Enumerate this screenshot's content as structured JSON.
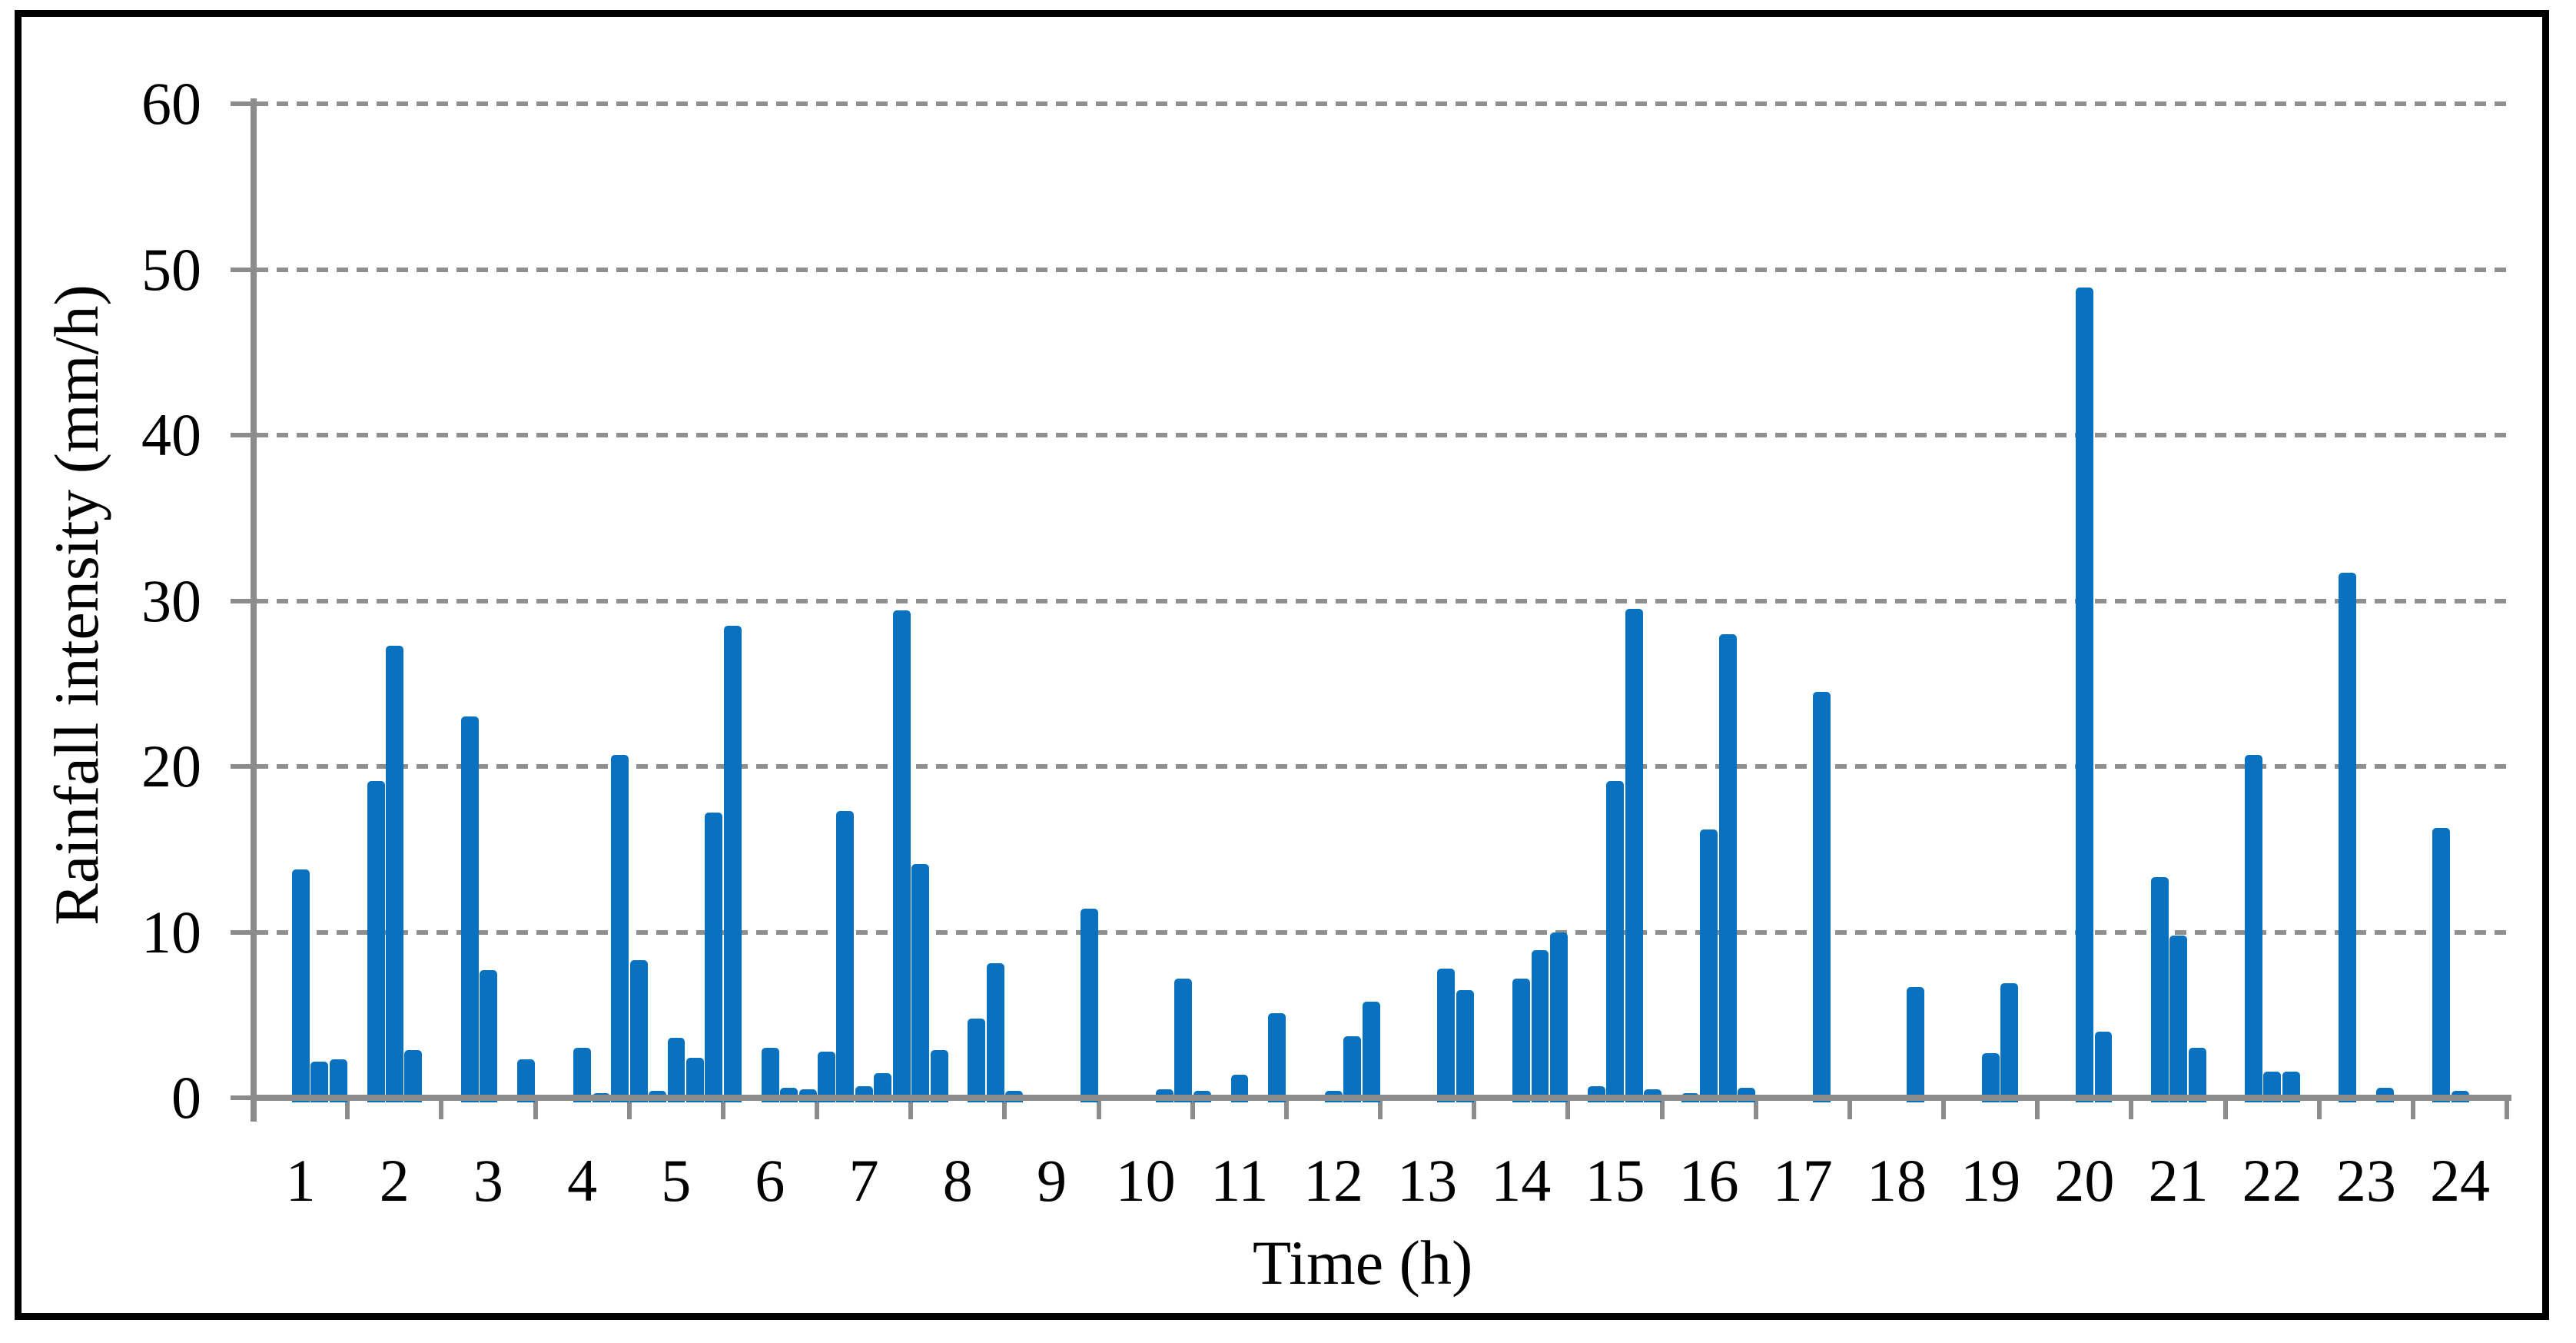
{
  "chart_data": {
    "type": "bar",
    "title": "",
    "xlabel": "Time (h)",
    "ylabel": "Rainfall intensity (mm/h)",
    "x_tick_labels": [
      "1",
      "2",
      "3",
      "4",
      "5",
      "6",
      "7",
      "8",
      "9",
      "10",
      "11",
      "12",
      "13",
      "14",
      "15",
      "16",
      "17",
      "18",
      "19",
      "20",
      "21",
      "22",
      "23",
      "24"
    ],
    "y_ticks": [
      0,
      10,
      20,
      30,
      40,
      50,
      60
    ],
    "ylim": [
      0,
      60
    ],
    "grid": "horizontal-dashed",
    "legend": "none",
    "bars_per_hour": 5,
    "interval_minutes": 12,
    "bar_color": "#0872c0",
    "axis_color": "#8c8c8c",
    "gridline_color": "#8f8f8f",
    "frame_color": "#000000",
    "series": [
      {
        "name": "Rainfall intensity (mm/h)",
        "values_by_hour": [
          [
            0,
            0,
            13.8,
            2.2,
            2.3
          ],
          [
            0,
            19.1,
            27.3,
            2.9,
            0
          ],
          [
            0,
            23.0,
            7.7,
            0,
            2.3
          ],
          [
            0,
            0,
            3.0,
            0.3,
            20.7
          ],
          [
            8.3,
            0.4,
            3.6,
            2.4,
            17.2
          ],
          [
            28.5,
            0,
            3.0,
            0.6,
            0.5
          ],
          [
            2.8,
            17.3,
            0.7,
            1.5,
            29.4
          ],
          [
            14.1,
            2.9,
            0,
            4.8,
            8.1
          ],
          [
            0.4,
            0,
            0,
            0,
            11.4
          ],
          [
            0,
            0,
            0,
            0.5,
            7.2
          ],
          [
            0.4,
            0,
            1.4,
            0,
            5.1
          ],
          [
            0,
            0,
            0.4,
            3.7,
            5.8
          ],
          [
            0,
            0,
            0,
            7.8,
            6.5
          ],
          [
            0,
            0,
            7.2,
            8.9,
            10.0
          ],
          [
            0,
            0.7,
            19.1,
            29.5,
            0.5
          ],
          [
            0,
            0.3,
            16.2,
            28.0,
            0.6
          ],
          [
            0,
            0,
            0,
            24.5,
            0
          ],
          [
            0,
            0,
            0,
            6.7,
            0
          ],
          [
            0,
            0,
            2.7,
            6.9,
            0
          ],
          [
            0,
            0,
            48.9,
            4.0,
            0
          ],
          [
            0,
            13.3,
            9.8,
            3.0,
            0
          ],
          [
            0,
            20.7,
            1.6,
            1.6,
            0
          ],
          [
            0,
            31.7,
            0,
            0.6,
            0
          ],
          [
            0,
            16.3,
            0.4,
            0,
            0
          ]
        ]
      }
    ]
  }
}
